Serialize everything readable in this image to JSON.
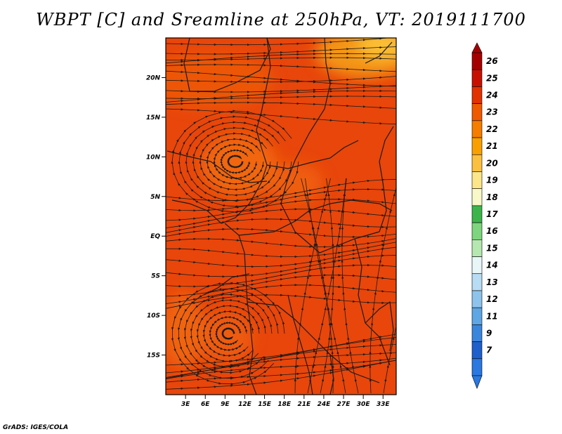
{
  "title": "WBPT [C] and Sreamline at 250hPa, VT: 2019111700",
  "credit": "GrADS: IGES/COLA",
  "map": {
    "x_tick_labels": [
      "3E",
      "6E",
      "9E",
      "12E",
      "15E",
      "18E",
      "21E",
      "24E",
      "27E",
      "30E",
      "33E"
    ],
    "y_tick_labels": [
      "20N",
      "15N",
      "10N",
      "5N",
      "EQ",
      "5S",
      "10S",
      "15S"
    ],
    "x_ticks_deg": [
      3,
      6,
      9,
      12,
      15,
      18,
      21,
      24,
      27,
      30,
      33
    ],
    "y_ticks_deg": [
      20,
      15,
      10,
      5,
      0,
      -5,
      -10,
      -15
    ],
    "lon_range": [
      0,
      35
    ],
    "lat_range": [
      -20,
      25
    ],
    "field_name": "WBPT",
    "field_units": "C",
    "level": "250hPa",
    "colors": {
      "base": "#e8460b",
      "warm_patch": "#f26a0e",
      "orange_patch": "#f5a018",
      "yellow_patch": "#fbc43a",
      "streamline": "#1a1a1a"
    }
  },
  "colorbar": {
    "labels": [
      "26",
      "25",
      "24",
      "23",
      "22",
      "21",
      "20",
      "19",
      "18",
      "17",
      "16",
      "15",
      "14",
      "13",
      "12",
      "11",
      "9",
      "7"
    ],
    "colors": [
      "#a50000",
      "#c81000",
      "#e23200",
      "#ef5a00",
      "#f57d00",
      "#f9a000",
      "#fcc040",
      "#fde68a",
      "#f8f8c8",
      "#3cb44a",
      "#7fd47f",
      "#b5e8b0",
      "#e8f6f8",
      "#b8dcf4",
      "#8ec4ec",
      "#5ea6e4",
      "#3a86dc",
      "#1f5fcc",
      "#2a78e0"
    ]
  }
}
